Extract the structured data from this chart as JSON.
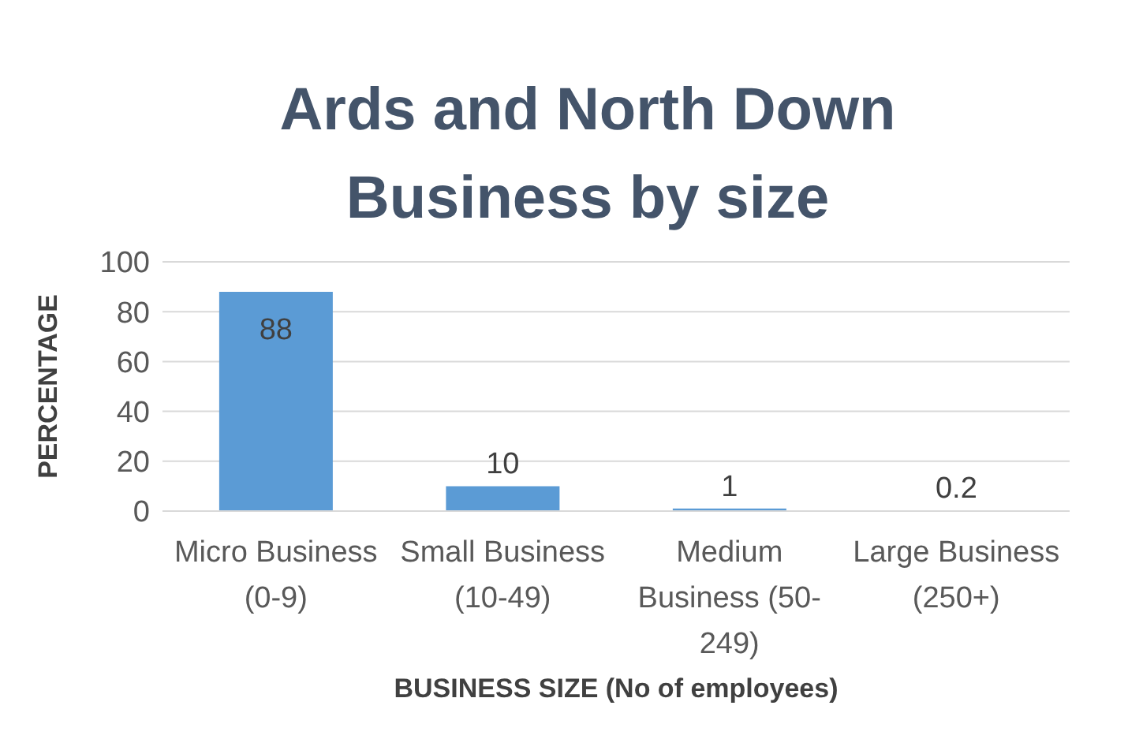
{
  "chart_data": {
    "type": "bar",
    "title": "Ards and North Down Business by size",
    "xlabel": "BUSINESS SIZE (No of employees)",
    "ylabel": "PERCENTAGE",
    "categories": [
      "Micro Business (0-9)",
      "Small Business (10-49)",
      "Medium Business (50-249)",
      "Large Business (250+)"
    ],
    "values": [
      88,
      10,
      1,
      0.2
    ],
    "color": "#5b9bd5",
    "ylim": [
      0,
      100
    ],
    "yticks": [
      0,
      20,
      40,
      60,
      80,
      100
    ],
    "grid": "y",
    "data_labels": true
  }
}
